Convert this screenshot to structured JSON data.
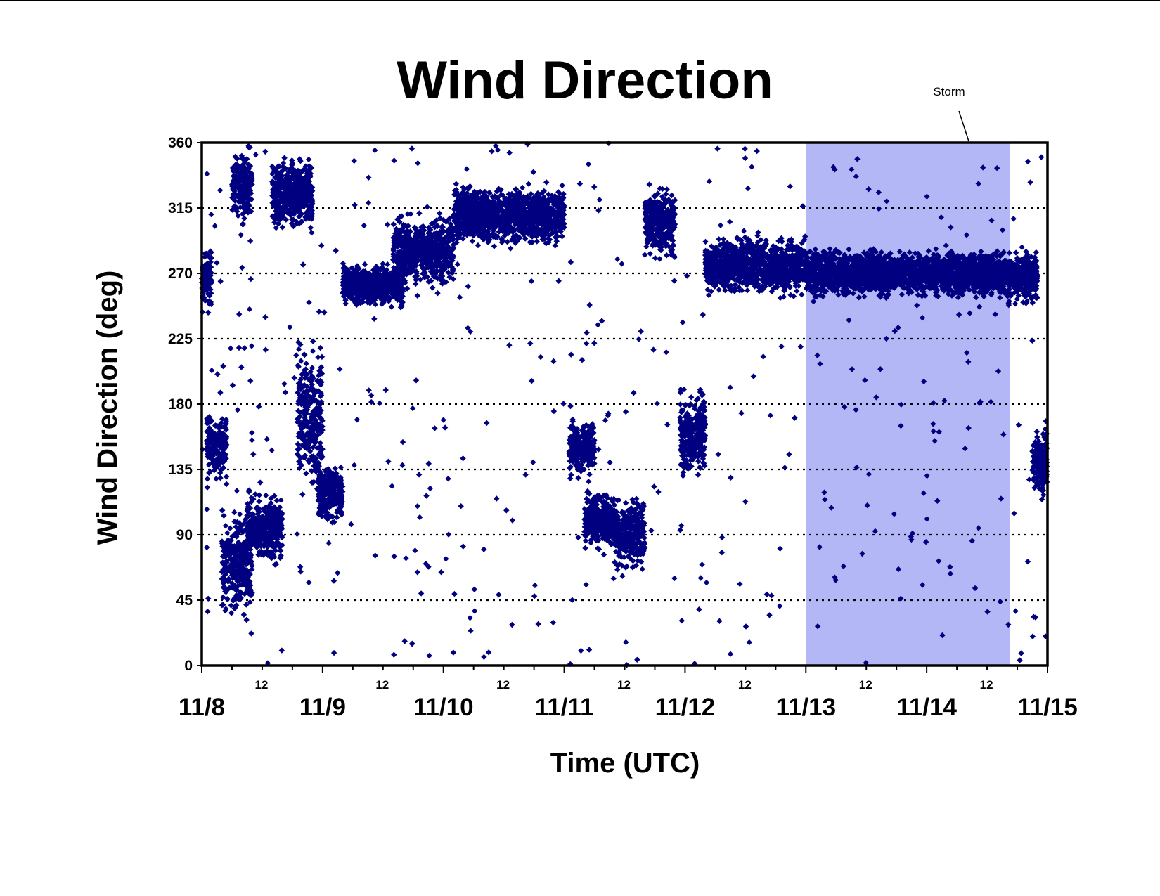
{
  "chart_data": {
    "type": "scatter",
    "title": "Wind Direction",
    "xlabel": "Time (UTC)",
    "ylabel": "Wind Direction (deg)",
    "ylim": [
      0,
      360
    ],
    "yticks": [
      0,
      45,
      90,
      135,
      180,
      225,
      270,
      315,
      360
    ],
    "xlim": [
      "11/8 00:00",
      "11/15 00:00"
    ],
    "x_major_labels": [
      "11/8",
      "11/9",
      "11/10",
      "11/11",
      "11/12",
      "11/13",
      "11/14",
      "11/15"
    ],
    "x_minor_label": "12",
    "grid": "horizontal dotted at y ticks",
    "marker": "diamond",
    "marker_color": "#000080",
    "shaded_region": {
      "label": "Storm",
      "x_start": "11/13 00:00",
      "x_end": "11/14 16:00",
      "color": "#b3b7f5"
    },
    "series": [
      {
        "values_note_units": "x in hours since 11/8 00:00 shown as day/hour clusters; y in degrees",
        "clusters": [
          {
            "x_from_hr": 0,
            "x_to_hr": 2,
            "y_center": 265,
            "y_spread": 25
          },
          {
            "x_from_hr": 1,
            "x_to_hr": 5,
            "y_center": 150,
            "y_spread": 25
          },
          {
            "x_from_hr": 4,
            "x_to_hr": 10,
            "y_center": 70,
            "y_spread": 45
          },
          {
            "x_from_hr": 6,
            "x_to_hr": 10,
            "y_center": 330,
            "y_spread": 30
          },
          {
            "x_from_hr": 9,
            "x_to_hr": 16,
            "y_center": 95,
            "y_spread": 30
          },
          {
            "x_from_hr": 14,
            "x_to_hr": 22,
            "y_center": 325,
            "y_spread": 30
          },
          {
            "x_from_hr": 19,
            "x_to_hr": 24,
            "y_center": 170,
            "y_spread": 60
          },
          {
            "x_from_hr": 23,
            "x_to_hr": 28,
            "y_center": 120,
            "y_spread": 25
          },
          {
            "x_from_hr": 28,
            "x_to_hr": 40,
            "y_center": 262,
            "y_spread": 18
          },
          {
            "x_from_hr": 38,
            "x_to_hr": 50,
            "y_center": 285,
            "y_spread": 30
          },
          {
            "x_from_hr": 50,
            "x_to_hr": 72,
            "y_center": 310,
            "y_spread": 25
          },
          {
            "x_from_hr": 73,
            "x_to_hr": 78,
            "y_center": 150,
            "y_spread": 25
          },
          {
            "x_from_hr": 76,
            "x_to_hr": 82,
            "y_center": 100,
            "y_spread": 25
          },
          {
            "x_from_hr": 82,
            "x_to_hr": 88,
            "y_center": 90,
            "y_spread": 30
          },
          {
            "x_from_hr": 88,
            "x_to_hr": 94,
            "y_center": 305,
            "y_spread": 30
          },
          {
            "x_from_hr": 95,
            "x_to_hr": 100,
            "y_center": 160,
            "y_spread": 35
          },
          {
            "x_from_hr": 100,
            "x_to_hr": 120,
            "y_center": 275,
            "y_spread": 25
          },
          {
            "x_from_hr": 120,
            "x_to_hr": 160,
            "y_center": 270,
            "y_spread": 20
          },
          {
            "x_from_hr": 160,
            "x_to_hr": 166,
            "y_center": 268,
            "y_spread": 22
          },
          {
            "x_from_hr": 165,
            "x_to_hr": 168,
            "y_center": 140,
            "y_spread": 30
          }
        ]
      }
    ]
  }
}
